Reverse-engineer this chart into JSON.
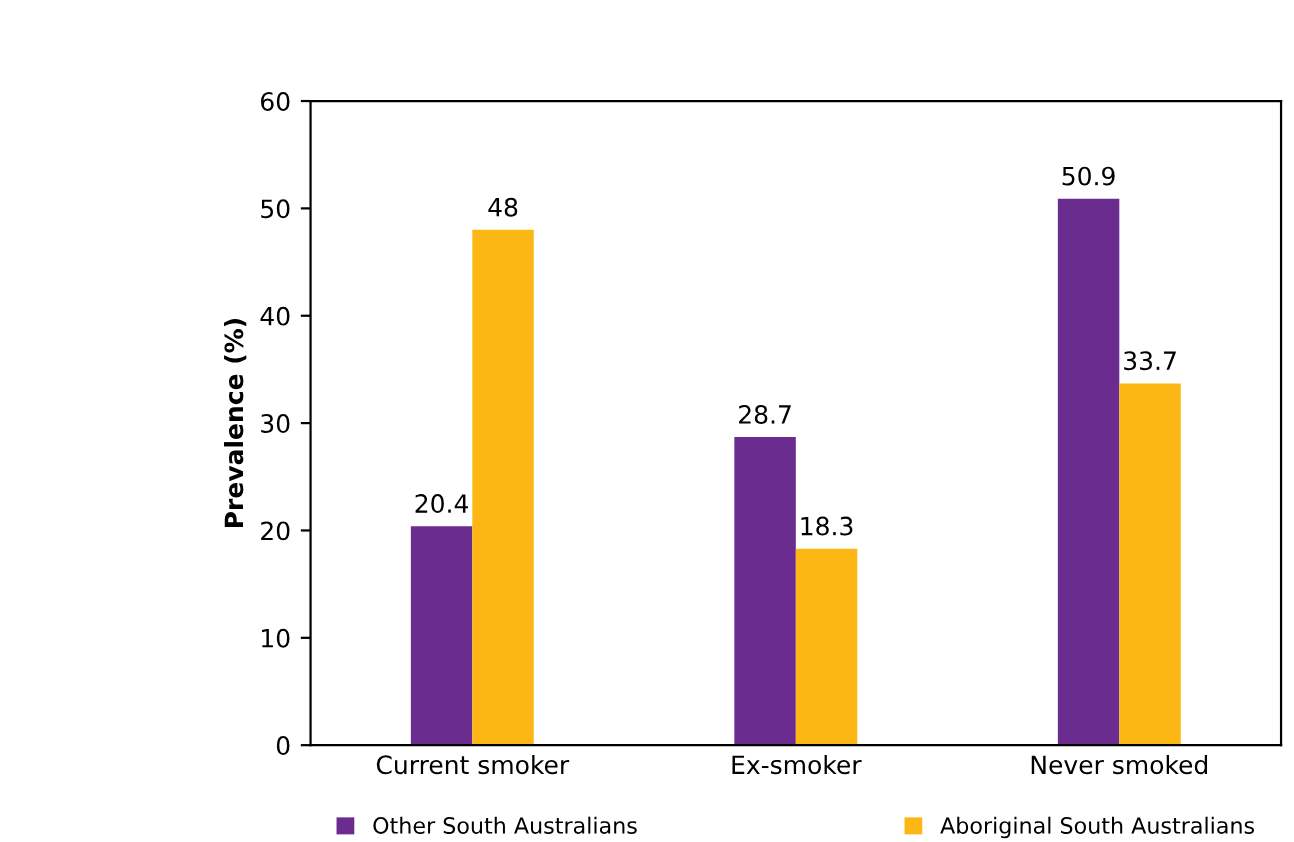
{
  "chart_data": {
    "type": "bar",
    "ylabel": "Prevalence (%)",
    "categories": [
      "Current smoker",
      "Ex-smoker",
      "Never smoked"
    ],
    "series": [
      {
        "name": "Other South Australians",
        "color": "#6a2c8e",
        "values": [
          20.4,
          28.7,
          50.9
        ]
      },
      {
        "name": "Aboriginal South Australians",
        "color": "#fdb714",
        "values": [
          48,
          18.3,
          33.7
        ]
      }
    ],
    "ylim": [
      0,
      60
    ],
    "yticks": [
      0,
      10,
      20,
      30,
      40,
      50,
      60
    ],
    "data_labels": true,
    "grid": false,
    "legend": "bottom"
  }
}
